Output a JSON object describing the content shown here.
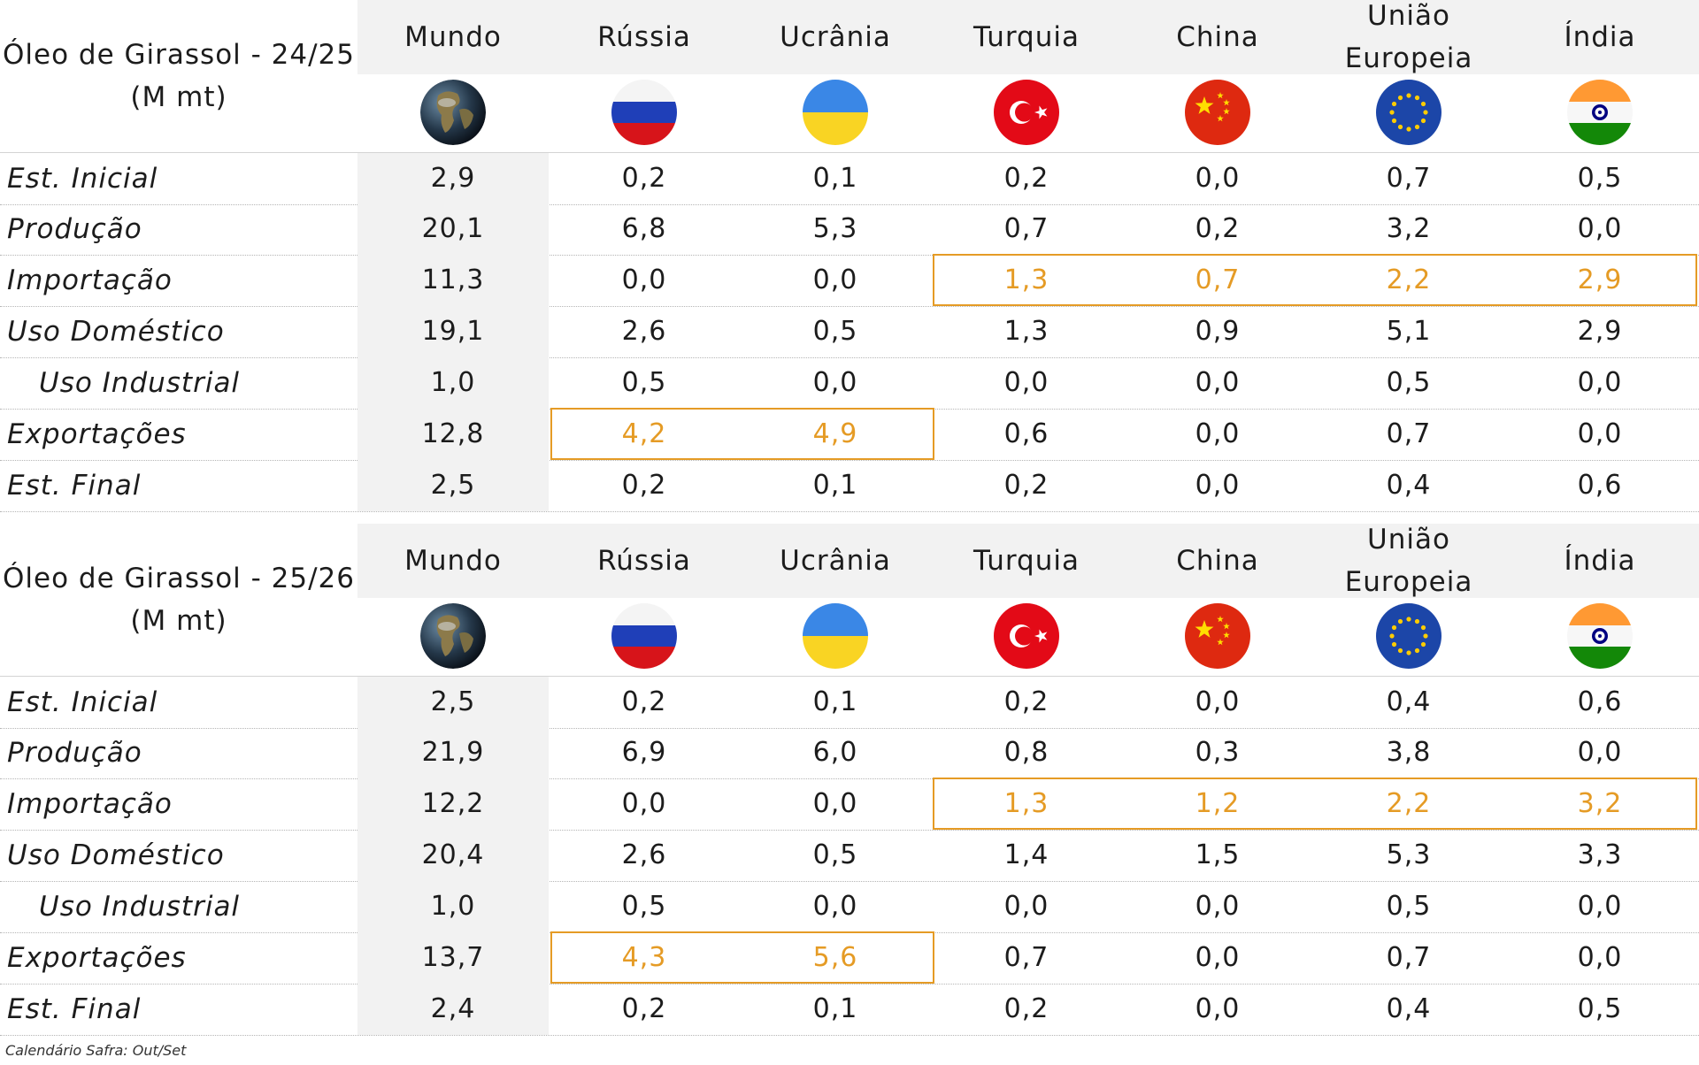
{
  "columns": [
    "Mundo",
    "Rússia",
    "Ucrânia",
    "Turquia",
    "China",
    "União\nEuropeia",
    "Índia"
  ],
  "flags": [
    "globe-icon",
    "russia-flag-icon",
    "ukraine-flag-icon",
    "turkey-flag-icon",
    "china-flag-icon",
    "eu-flag-icon",
    "india-flag-icon"
  ],
  "accent_color": "#e59b25",
  "tables": [
    {
      "title_line1": "Óleo de Girassol - 24/25",
      "title_line2": "(M mt)",
      "rows": [
        {
          "label": "Est. Inicial",
          "values": [
            "2,9",
            "0,2",
            "0,1",
            "0,2",
            "0,0",
            "0,7",
            "0,5"
          ]
        },
        {
          "label": "Produção",
          "values": [
            "20,1",
            "6,8",
            "5,3",
            "0,7",
            "0,2",
            "3,2",
            "0,0"
          ]
        },
        {
          "label": "Importação",
          "values": [
            "11,3",
            "0,0",
            "0,0",
            "1,3",
            "0,7",
            "2,2",
            "2,9"
          ]
        },
        {
          "label": "Uso Doméstico",
          "values": [
            "19,1",
            "2,6",
            "0,5",
            "1,3",
            "0,9",
            "5,1",
            "2,9"
          ]
        },
        {
          "label": "Uso Industrial",
          "values": [
            "1,0",
            "0,5",
            "0,0",
            "0,0",
            "0,0",
            "0,5",
            "0,0"
          ]
        },
        {
          "label": "Exportações",
          "values": [
            "12,8",
            "4,2",
            "4,9",
            "0,6",
            "0,0",
            "0,7",
            "0,0"
          ]
        },
        {
          "label": "Est. Final",
          "values": [
            "2,5",
            "0,2",
            "0,1",
            "0,2",
            "0,0",
            "0,4",
            "0,6"
          ]
        }
      ]
    },
    {
      "title_line1": "Óleo de Girassol - 25/26",
      "title_line2": "(M mt)",
      "rows": [
        {
          "label": "Est. Inicial",
          "values": [
            "2,5",
            "0,2",
            "0,1",
            "0,2",
            "0,0",
            "0,4",
            "0,6"
          ]
        },
        {
          "label": "Produção",
          "values": [
            "21,9",
            "6,9",
            "6,0",
            "0,8",
            "0,3",
            "3,8",
            "0,0"
          ]
        },
        {
          "label": "Importação",
          "values": [
            "12,2",
            "0,0",
            "0,0",
            "1,3",
            "1,2",
            "2,2",
            "3,2"
          ]
        },
        {
          "label": "Uso Doméstico",
          "values": [
            "20,4",
            "2,6",
            "0,5",
            "1,4",
            "1,5",
            "5,3",
            "3,3"
          ]
        },
        {
          "label": "Uso Industrial",
          "values": [
            "1,0",
            "0,5",
            "0,0",
            "0,0",
            "0,0",
            "0,5",
            "0,0"
          ]
        },
        {
          "label": "Exportações",
          "values": [
            "13,7",
            "4,3",
            "5,6",
            "0,7",
            "0,0",
            "0,7",
            "0,0"
          ]
        },
        {
          "label": "Est. Final",
          "values": [
            "2,4",
            "0,2",
            "0,1",
            "0,2",
            "0,0",
            "0,4",
            "0,5"
          ]
        }
      ]
    }
  ],
  "footnote": "Calendário Safra: Out/Set"
}
